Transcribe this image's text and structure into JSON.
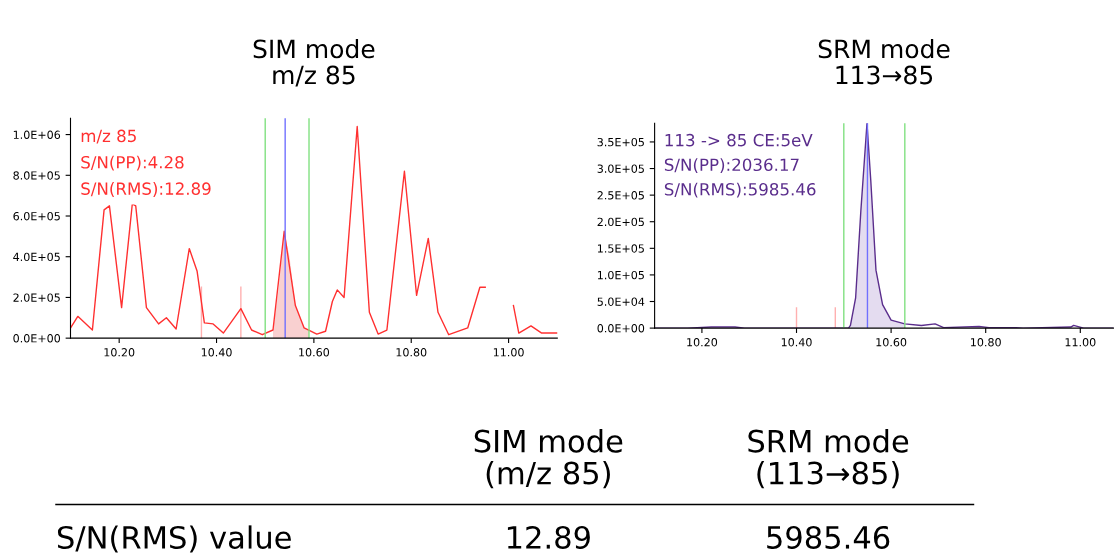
{
  "chart_data": [
    {
      "type": "line",
      "title": "SIM mode\nm/z 85",
      "xlim": [
        10.1,
        11.1
      ],
      "ylim": [
        0,
        1080000
      ],
      "xticks": [
        {
          "value": 10.2,
          "label": "10.20"
        },
        {
          "value": 10.4,
          "label": "10.40"
        },
        {
          "value": 10.6,
          "label": "10.60"
        },
        {
          "value": 10.8,
          "label": "10.80"
        },
        {
          "value": 11.0,
          "label": "11.00"
        }
      ],
      "yticks": [
        {
          "value": 0,
          "label": "0.0E+00"
        },
        {
          "value": 200000,
          "label": "2.0E+05"
        },
        {
          "value": 400000,
          "label": "4.0E+05"
        },
        {
          "value": 600000,
          "label": "6.0E+05"
        },
        {
          "value": 800000,
          "label": "8.0E+05"
        },
        {
          "value": 1000000,
          "label": "1.0E+06"
        }
      ],
      "grid": false,
      "legend": false,
      "series": [
        {
          "type": "area",
          "color": "#f9d0d0",
          "x": [
            10.516,
            10.528,
            10.539,
            10.55,
            10.562,
            10.58,
            10.59
          ],
          "values": [
            40000,
            250000,
            525000,
            400000,
            160000,
            50000,
            35000
          ]
        },
        {
          "type": "line",
          "color": "#ffb0b0",
          "x": [
            10.369,
            10.369,
            10.41,
            10.45,
            10.45
          ],
          "values": [
            0,
            250000,
            null,
            0,
            250000
          ]
        },
        {
          "type": "line",
          "color": "#ff3030",
          "x": [
            10.1,
            10.115,
            10.145,
            10.169,
            10.18,
            10.205,
            10.227,
            10.234,
            10.256,
            10.281,
            10.297,
            10.317,
            10.344,
            10.36,
            10.375,
            10.393,
            10.414,
            10.45,
            10.472,
            10.494,
            10.516,
            10.539,
            10.562,
            10.58,
            10.606,
            10.624,
            10.638,
            10.648,
            10.662,
            10.689,
            10.714,
            10.732,
            10.75,
            10.786,
            10.811,
            10.835,
            10.855,
            10.877,
            10.916,
            10.941,
            10.952,
            10.966,
            10.996,
            11.01,
            11.021,
            11.046,
            11.068,
            11.1
          ],
          "values": [
            50000,
            107000,
            40000,
            630000,
            650000,
            150000,
            660000,
            650000,
            150000,
            70000,
            100000,
            45000,
            440000,
            330000,
            75000,
            70000,
            25000,
            145000,
            40000,
            17000,
            40000,
            525000,
            160000,
            50000,
            20000,
            34000,
            180000,
            237000,
            200000,
            1040000,
            127000,
            20000,
            40000,
            820000,
            210000,
            490000,
            127000,
            17000,
            50000,
            250000,
            250000,
            null,
            null,
            160000,
            25000,
            60000,
            25000,
            25000
          ]
        }
      ],
      "ref_lines": [
        {
          "axis": "x",
          "value": 10.5,
          "color": "#80e080"
        },
        {
          "axis": "x",
          "value": 10.59,
          "color": "#80e080"
        },
        {
          "axis": "x",
          "value": 10.541,
          "color": "#7070ff"
        }
      ],
      "annotations": [
        "m/z 85",
        "S/N(PP):4.28",
        "S/N(RMS):12.89"
      ]
    },
    {
      "type": "line",
      "title": "SRM mode\n113→85",
      "xlim": [
        10.1,
        11.07
      ],
      "ylim": [
        0,
        385000
      ],
      "xticks": [
        {
          "value": 10.2,
          "label": "10.20"
        },
        {
          "value": 10.4,
          "label": "10.40"
        },
        {
          "value": 10.6,
          "label": "10.60"
        },
        {
          "value": 10.8,
          "label": "10.80"
        },
        {
          "value": 11.0,
          "label": "11.00"
        }
      ],
      "yticks": [
        {
          "value": 0,
          "label": "0.0E+00"
        },
        {
          "value": 50000,
          "label": "5.0E+04"
        },
        {
          "value": 100000,
          "label": "1.0E+05"
        },
        {
          "value": 150000,
          "label": "1.5E+05"
        },
        {
          "value": 200000,
          "label": "2.0E+05"
        },
        {
          "value": 250000,
          "label": "2.5E+05"
        },
        {
          "value": 300000,
          "label": "3.0E+05"
        },
        {
          "value": 350000,
          "label": "3.5E+05"
        }
      ],
      "grid": false,
      "legend": false,
      "series": [
        {
          "type": "area",
          "color": "#e4dcf0",
          "x": [
            10.514,
            10.525,
            10.536,
            10.549,
            10.557,
            10.568,
            10.582,
            10.6,
            10.629
          ],
          "values": [
            5000,
            57000,
            220000,
            385000,
            278000,
            109000,
            44000,
            15000,
            8000
          ]
        },
        {
          "type": "line",
          "color": "#ffb0b0",
          "x": [
            10.4,
            10.4,
            10.44,
            10.482,
            10.482
          ],
          "values": [
            0,
            38000,
            null,
            0,
            38000
          ]
        },
        {
          "type": "line",
          "color": "#5a2d8c",
          "x": [
            10.1,
            10.17,
            10.22,
            10.27,
            10.29,
            10.51,
            10.514,
            10.525,
            10.536,
            10.549,
            10.557,
            10.568,
            10.582,
            10.6,
            10.629,
            10.664,
            10.693,
            10.711,
            10.786,
            10.807,
            10.864,
            10.879,
            10.98,
            10.986,
            11.007,
            11.07
          ],
          "values": [
            0,
            0,
            2000,
            2000,
            0,
            0,
            5000,
            57000,
            220000,
            385000,
            278000,
            109000,
            44000,
            15000,
            8000,
            5000,
            8000,
            1000,
            3000,
            1000,
            1000,
            0,
            2000,
            5000,
            0,
            0
          ]
        }
      ],
      "ref_lines": [
        {
          "axis": "x",
          "value": 10.5,
          "color": "#80e080"
        },
        {
          "axis": "x",
          "value": 10.629,
          "color": "#80e080"
        },
        {
          "axis": "x",
          "value": 10.55,
          "color": "#7070ff"
        }
      ],
      "annotations": [
        "113 -> 85 CE:5eV",
        "S/N(PP):2036.17",
        "S/N(RMS):5985.46"
      ]
    },
    {
      "type": "other",
      "annotations": [
        "SIM mode\n(m/z 85)",
        "SRM mode\n(113→85)",
        "S/N(RMS) value",
        "12.89",
        "5985.46"
      ]
    }
  ]
}
